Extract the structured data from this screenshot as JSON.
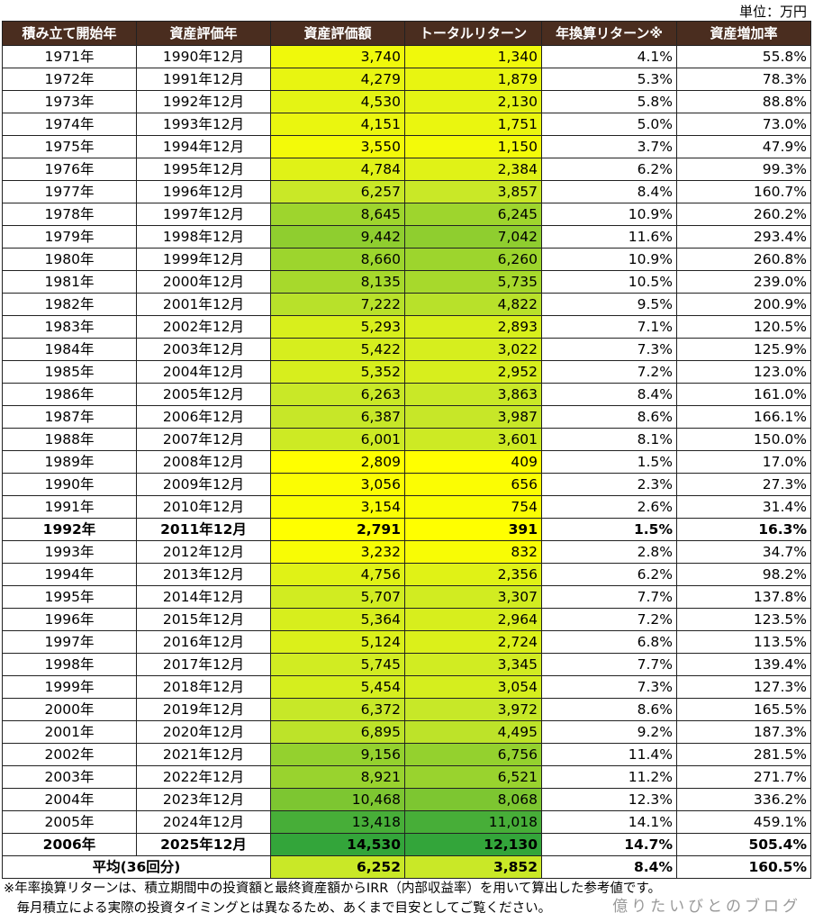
{
  "unit": "単位：万円",
  "headers": [
    "積み立て開始年",
    "資産評価年",
    "資産評価額",
    "トータルリターン",
    "年換算リターン※",
    "資産増加率"
  ],
  "rows": [
    {
      "start": "1971年",
      "eval": "1990年12月",
      "value": "3,740",
      "ret": "1,340",
      "ann": "4.1%",
      "inc": "55.8%",
      "bold": false
    },
    {
      "start": "1972年",
      "eval": "1991年12月",
      "value": "4,279",
      "ret": "1,879",
      "ann": "5.3%",
      "inc": "78.3%",
      "bold": false
    },
    {
      "start": "1973年",
      "eval": "1992年12月",
      "value": "4,530",
      "ret": "2,130",
      "ann": "5.8%",
      "inc": "88.8%",
      "bold": false
    },
    {
      "start": "1974年",
      "eval": "1993年12月",
      "value": "4,151",
      "ret": "1,751",
      "ann": "5.0%",
      "inc": "73.0%",
      "bold": false
    },
    {
      "start": "1975年",
      "eval": "1994年12月",
      "value": "3,550",
      "ret": "1,150",
      "ann": "3.7%",
      "inc": "47.9%",
      "bold": false
    },
    {
      "start": "1976年",
      "eval": "1995年12月",
      "value": "4,784",
      "ret": "2,384",
      "ann": "6.2%",
      "inc": "99.3%",
      "bold": false
    },
    {
      "start": "1977年",
      "eval": "1996年12月",
      "value": "6,257",
      "ret": "3,857",
      "ann": "8.4%",
      "inc": "160.7%",
      "bold": false
    },
    {
      "start": "1978年",
      "eval": "1997年12月",
      "value": "8,645",
      "ret": "6,245",
      "ann": "10.9%",
      "inc": "260.2%",
      "bold": false
    },
    {
      "start": "1979年",
      "eval": "1998年12月",
      "value": "9,442",
      "ret": "7,042",
      "ann": "11.6%",
      "inc": "293.4%",
      "bold": false
    },
    {
      "start": "1980年",
      "eval": "1999年12月",
      "value": "8,660",
      "ret": "6,260",
      "ann": "10.9%",
      "inc": "260.8%",
      "bold": false
    },
    {
      "start": "1981年",
      "eval": "2000年12月",
      "value": "8,135",
      "ret": "5,735",
      "ann": "10.5%",
      "inc": "239.0%",
      "bold": false
    },
    {
      "start": "1982年",
      "eval": "2001年12月",
      "value": "7,222",
      "ret": "4,822",
      "ann": "9.5%",
      "inc": "200.9%",
      "bold": false
    },
    {
      "start": "1983年",
      "eval": "2002年12月",
      "value": "5,293",
      "ret": "2,893",
      "ann": "7.1%",
      "inc": "120.5%",
      "bold": false
    },
    {
      "start": "1984年",
      "eval": "2003年12月",
      "value": "5,422",
      "ret": "3,022",
      "ann": "7.3%",
      "inc": "125.9%",
      "bold": false
    },
    {
      "start": "1985年",
      "eval": "2004年12月",
      "value": "5,352",
      "ret": "2,952",
      "ann": "7.2%",
      "inc": "123.0%",
      "bold": false
    },
    {
      "start": "1986年",
      "eval": "2005年12月",
      "value": "6,263",
      "ret": "3,863",
      "ann": "8.4%",
      "inc": "161.0%",
      "bold": false
    },
    {
      "start": "1987年",
      "eval": "2006年12月",
      "value": "6,387",
      "ret": "3,987",
      "ann": "8.6%",
      "inc": "166.1%",
      "bold": false
    },
    {
      "start": "1988年",
      "eval": "2007年12月",
      "value": "6,001",
      "ret": "3,601",
      "ann": "8.1%",
      "inc": "150.0%",
      "bold": false
    },
    {
      "start": "1989年",
      "eval": "2008年12月",
      "value": "2,809",
      "ret": "409",
      "ann": "1.5%",
      "inc": "17.0%",
      "bold": false
    },
    {
      "start": "1990年",
      "eval": "2009年12月",
      "value": "3,056",
      "ret": "656",
      "ann": "2.3%",
      "inc": "27.3%",
      "bold": false
    },
    {
      "start": "1991年",
      "eval": "2010年12月",
      "value": "3,154",
      "ret": "754",
      "ann": "2.6%",
      "inc": "31.4%",
      "bold": false
    },
    {
      "start": "1992年",
      "eval": "2011年12月",
      "value": "2,791",
      "ret": "391",
      "ann": "1.5%",
      "inc": "16.3%",
      "bold": true
    },
    {
      "start": "1993年",
      "eval": "2012年12月",
      "value": "3,232",
      "ret": "832",
      "ann": "2.8%",
      "inc": "34.7%",
      "bold": false
    },
    {
      "start": "1994年",
      "eval": "2013年12月",
      "value": "4,756",
      "ret": "2,356",
      "ann": "6.2%",
      "inc": "98.2%",
      "bold": false
    },
    {
      "start": "1995年",
      "eval": "2014年12月",
      "value": "5,707",
      "ret": "3,307",
      "ann": "7.7%",
      "inc": "137.8%",
      "bold": false
    },
    {
      "start": "1996年",
      "eval": "2015年12月",
      "value": "5,364",
      "ret": "2,964",
      "ann": "7.2%",
      "inc": "123.5%",
      "bold": false
    },
    {
      "start": "1997年",
      "eval": "2016年12月",
      "value": "5,124",
      "ret": "2,724",
      "ann": "6.8%",
      "inc": "113.5%",
      "bold": false
    },
    {
      "start": "1998年",
      "eval": "2017年12月",
      "value": "5,745",
      "ret": "3,345",
      "ann": "7.7%",
      "inc": "139.4%",
      "bold": false
    },
    {
      "start": "1999年",
      "eval": "2018年12月",
      "value": "5,454",
      "ret": "3,054",
      "ann": "7.3%",
      "inc": "127.3%",
      "bold": false
    },
    {
      "start": "2000年",
      "eval": "2019年12月",
      "value": "6,372",
      "ret": "3,972",
      "ann": "8.6%",
      "inc": "165.5%",
      "bold": false
    },
    {
      "start": "2001年",
      "eval": "2020年12月",
      "value": "6,895",
      "ret": "4,495",
      "ann": "9.2%",
      "inc": "187.3%",
      "bold": false
    },
    {
      "start": "2002年",
      "eval": "2021年12月",
      "value": "9,156",
      "ret": "6,756",
      "ann": "11.4%",
      "inc": "281.5%",
      "bold": false
    },
    {
      "start": "2003年",
      "eval": "2022年12月",
      "value": "8,921",
      "ret": "6,521",
      "ann": "11.2%",
      "inc": "271.7%",
      "bold": false
    },
    {
      "start": "2004年",
      "eval": "2023年12月",
      "value": "10,468",
      "ret": "8,068",
      "ann": "12.3%",
      "inc": "336.2%",
      "bold": false
    },
    {
      "start": "2005年",
      "eval": "2024年12月",
      "value": "13,418",
      "ret": "11,018",
      "ann": "14.1%",
      "inc": "459.1%",
      "bold": false
    },
    {
      "start": "2006年",
      "eval": "2025年12月",
      "value": "14,530",
      "ret": "12,130",
      "ann": "14.7%",
      "inc": "505.4%",
      "bold": true
    }
  ],
  "average": {
    "label": "平均(36回分)",
    "value": "6,252",
    "ret": "3,852",
    "ann": "8.4%",
    "inc": "160.5%"
  },
  "note_line1": "※年率換算リターンは、積立期間中の投資額と最終資産額からIRR（内部収益率）を用いて算出した参考値です。",
  "note_line2": "　毎月積立による実際の投資タイミングとは異なるため、あくまで目安としてご覧ください。",
  "watermark": "億りたいびとのブログ",
  "colors": {
    "header_bg": "#4a2d1f",
    "scale_low": "#ffff00",
    "scale_high": "#33a53a"
  }
}
